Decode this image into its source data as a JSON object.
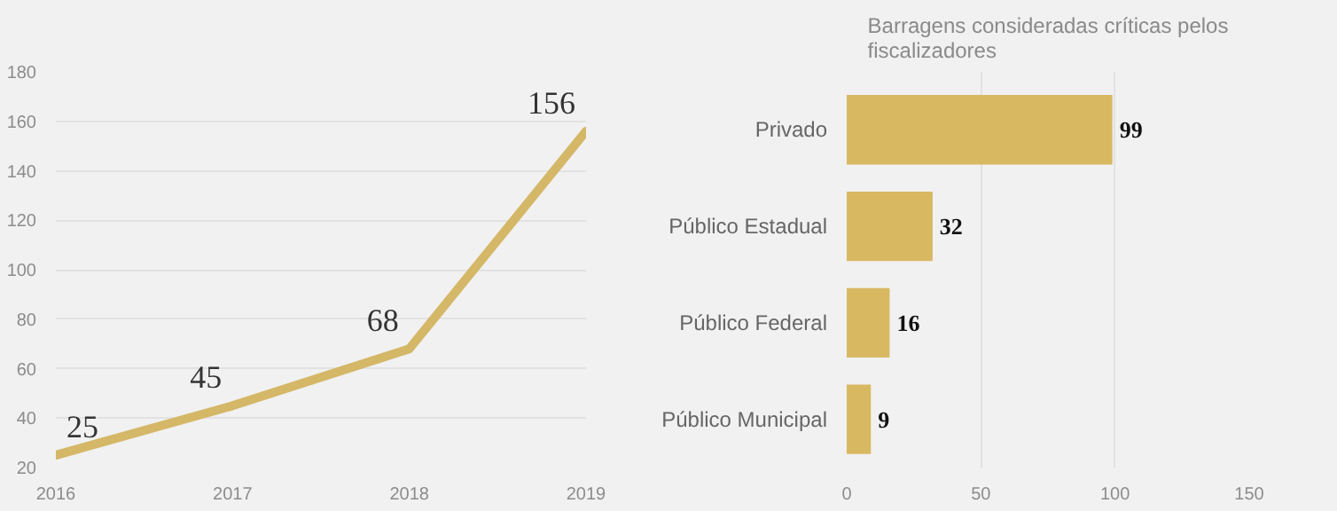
{
  "chart_data": [
    {
      "type": "line",
      "x": [
        2016,
        2017,
        2018,
        2019
      ],
      "series": [
        {
          "color": "#d4b767",
          "values": [
            25,
            45,
            68,
            156
          ]
        }
      ],
      "xlim": [
        2016,
        2019
      ],
      "xticks": [
        2016,
        2017,
        2018,
        2019
      ],
      "ylim": [
        20,
        180
      ],
      "yticks": [
        20,
        40,
        60,
        80,
        100,
        120,
        140,
        160,
        180
      ],
      "grid": "y",
      "data_labels": true
    },
    {
      "type": "bar",
      "orientation": "horizontal",
      "title": "Barragens consideradas críticas pelos fiscalizadores",
      "categories": [
        "Privado",
        "Público Estadual",
        "Público Federal",
        "Público Municipal"
      ],
      "series": [
        {
          "color": "#d9b862",
          "values": [
            99,
            32,
            16,
            9
          ]
        }
      ],
      "xlim": [
        0,
        150
      ],
      "xticks": [
        0,
        50,
        100,
        150
      ],
      "grid": "x",
      "data_labels": true
    }
  ]
}
